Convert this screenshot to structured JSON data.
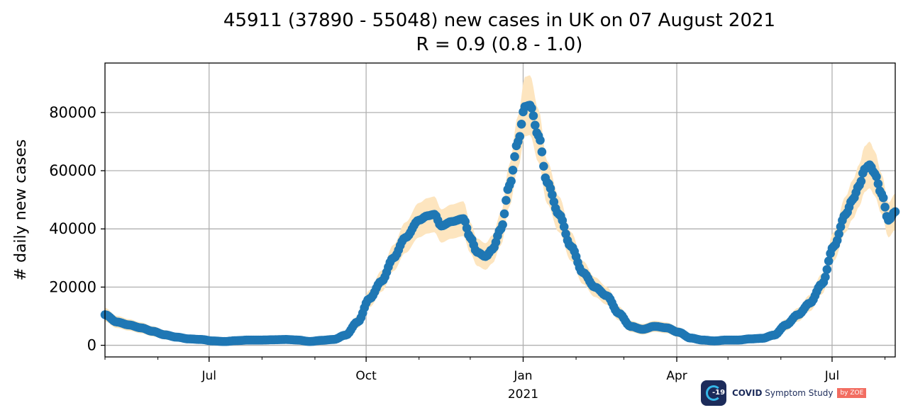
{
  "chart_data": {
    "type": "line",
    "title": "45911 (37890 - 55048) new cases in UK on 07 August 2021",
    "subtitle": "R = 0.9 (0.8 - 1.0)",
    "xlabel": "",
    "ylabel": "# daily new cases",
    "x_range": [
      "2020-05-01",
      "2021-08-07"
    ],
    "ylim": [
      -4000,
      97000
    ],
    "y_ticks": [
      0,
      20000,
      40000,
      60000,
      80000
    ],
    "x_ticks": [
      {
        "date": "2020-07-01",
        "label": "Jul"
      },
      {
        "date": "2020-10-01",
        "label": "Oct"
      },
      {
        "date": "2021-01-01",
        "label": "Jan",
        "sublabel": "2021"
      },
      {
        "date": "2021-04-01",
        "label": "Apr"
      },
      {
        "date": "2021-07-01",
        "label": "Jul"
      }
    ],
    "grid": true,
    "series": [
      {
        "color": "#1f77b4",
        "band_color": "#fde5bf",
        "points": [
          [
            "2020-05-01",
            10500
          ],
          [
            "2020-05-08",
            8000
          ],
          [
            "2020-05-15",
            7000
          ],
          [
            "2020-05-22",
            6000
          ],
          [
            "2020-05-29",
            4800
          ],
          [
            "2020-06-05",
            3600
          ],
          [
            "2020-06-12",
            2800
          ],
          [
            "2020-06-19",
            2200
          ],
          [
            "2020-06-26",
            2000
          ],
          [
            "2020-07-03",
            1500
          ],
          [
            "2020-07-10",
            1300
          ],
          [
            "2020-07-17",
            1600
          ],
          [
            "2020-07-24",
            1800
          ],
          [
            "2020-08-01",
            1800
          ],
          [
            "2020-08-08",
            1900
          ],
          [
            "2020-08-15",
            2000
          ],
          [
            "2020-08-22",
            1800
          ],
          [
            "2020-08-29",
            1300
          ],
          [
            "2020-09-05",
            1700
          ],
          [
            "2020-09-12",
            2000
          ],
          [
            "2020-09-19",
            3500
          ],
          [
            "2020-09-26",
            8000
          ],
          [
            "2020-10-03",
            16000
          ],
          [
            "2020-10-10",
            22000
          ],
          [
            "2020-10-17",
            30000
          ],
          [
            "2020-10-24",
            37000
          ],
          [
            "2020-11-01",
            43000
          ],
          [
            "2020-11-06",
            44500
          ],
          [
            "2020-11-10",
            45000
          ],
          [
            "2020-11-14",
            41000
          ],
          [
            "2020-11-20",
            42500
          ],
          [
            "2020-11-27",
            43500
          ],
          [
            "2020-12-01",
            37000
          ],
          [
            "2020-12-05",
            32000
          ],
          [
            "2020-12-10",
            30500
          ],
          [
            "2020-12-14",
            33000
          ],
          [
            "2020-12-19",
            40000
          ],
          [
            "2020-12-24",
            55000
          ],
          [
            "2020-12-29",
            70000
          ],
          [
            "2021-01-02",
            82000
          ],
          [
            "2021-01-05",
            82500
          ],
          [
            "2021-01-10",
            72000
          ],
          [
            "2021-01-15",
            56000
          ],
          [
            "2021-01-22",
            45000
          ],
          [
            "2021-01-29",
            34000
          ],
          [
            "2021-02-05",
            25000
          ],
          [
            "2021-02-12",
            20000
          ],
          [
            "2021-02-19",
            17000
          ],
          [
            "2021-02-26",
            11000
          ],
          [
            "2021-03-05",
            6500
          ],
          [
            "2021-03-12",
            5500
          ],
          [
            "2021-03-19",
            6500
          ],
          [
            "2021-03-26",
            6000
          ],
          [
            "2021-04-02",
            4500
          ],
          [
            "2021-04-09",
            2500
          ],
          [
            "2021-04-16",
            1800
          ],
          [
            "2021-04-23",
            1500
          ],
          [
            "2021-04-30",
            1800
          ],
          [
            "2021-05-07",
            1800
          ],
          [
            "2021-05-14",
            2200
          ],
          [
            "2021-05-21",
            2400
          ],
          [
            "2021-05-28",
            3500
          ],
          [
            "2021-06-04",
            7000
          ],
          [
            "2021-06-11",
            10500
          ],
          [
            "2021-06-18",
            14500
          ],
          [
            "2021-06-25",
            21000
          ],
          [
            "2021-07-02",
            34000
          ],
          [
            "2021-07-09",
            45000
          ],
          [
            "2021-07-13",
            50000
          ],
          [
            "2021-07-17",
            55000
          ],
          [
            "2021-07-20",
            60500
          ],
          [
            "2021-07-23",
            62000
          ],
          [
            "2021-07-26",
            59000
          ],
          [
            "2021-07-30",
            52000
          ],
          [
            "2021-08-03",
            43000
          ],
          [
            "2021-08-07",
            45911
          ]
        ]
      }
    ]
  },
  "branding": {
    "logo_badge": "-19",
    "logo_bold": "COVID",
    "logo_text": "Symptom Study",
    "logo_by": "by ZOE"
  }
}
